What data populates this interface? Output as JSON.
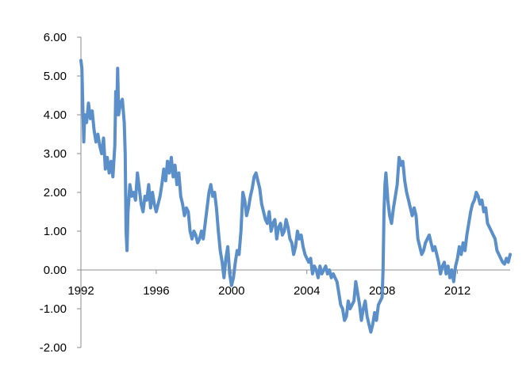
{
  "chart_data": {
    "type": "line",
    "title": "",
    "xlabel": "",
    "ylabel": "",
    "xlim": [
      1992,
      2014.8
    ],
    "ylim": [
      -2.0,
      6.0
    ],
    "grid": false,
    "legend": "none",
    "x_ticks": [
      {
        "value": 1992,
        "label": "1992"
      },
      {
        "value": 1996,
        "label": "1996"
      },
      {
        "value": 2000,
        "label": "2000"
      },
      {
        "value": 2004,
        "label": "2004"
      },
      {
        "value": 2008,
        "label": "2008"
      },
      {
        "value": 2012,
        "label": "2012"
      }
    ],
    "y_ticks": [
      {
        "value": 6,
        "label": "6.00"
      },
      {
        "value": 5,
        "label": "5.00"
      },
      {
        "value": 4,
        "label": "4.00"
      },
      {
        "value": 3,
        "label": "3.00"
      },
      {
        "value": 2,
        "label": "2.00"
      },
      {
        "value": 1,
        "label": "1.00"
      },
      {
        "value": 0,
        "label": "0.00"
      },
      {
        "value": -1,
        "label": "-1.00"
      },
      {
        "value": -2,
        "label": "-2.00"
      }
    ],
    "series": [
      {
        "color": "#5b8fc9",
        "points": [
          [
            1992.0,
            5.4
          ],
          [
            1992.05,
            5.2
          ],
          [
            1992.1,
            4.2
          ],
          [
            1992.15,
            3.3
          ],
          [
            1992.2,
            4.0
          ],
          [
            1992.3,
            3.8
          ],
          [
            1992.4,
            4.3
          ],
          [
            1992.5,
            3.9
          ],
          [
            1992.6,
            4.1
          ],
          [
            1992.7,
            3.6
          ],
          [
            1992.8,
            3.3
          ],
          [
            1992.9,
            3.5
          ],
          [
            1993.0,
            3.2
          ],
          [
            1993.1,
            3.0
          ],
          [
            1993.2,
            3.4
          ],
          [
            1993.3,
            2.6
          ],
          [
            1993.4,
            2.9
          ],
          [
            1993.5,
            2.5
          ],
          [
            1993.6,
            2.8
          ],
          [
            1993.7,
            2.4
          ],
          [
            1993.8,
            3.2
          ],
          [
            1993.85,
            4.6
          ],
          [
            1993.9,
            4.0
          ],
          [
            1993.95,
            5.2
          ],
          [
            1994.0,
            4.0
          ],
          [
            1994.1,
            4.3
          ],
          [
            1994.2,
            4.4
          ],
          [
            1994.3,
            3.8
          ],
          [
            1994.35,
            3.0
          ],
          [
            1994.4,
            1.0
          ],
          [
            1994.45,
            0.5
          ],
          [
            1994.5,
            1.5
          ],
          [
            1994.6,
            2.2
          ],
          [
            1994.7,
            1.9
          ],
          [
            1994.8,
            2.0
          ],
          [
            1994.9,
            1.8
          ],
          [
            1995.0,
            2.5
          ],
          [
            1995.1,
            2.1
          ],
          [
            1995.2,
            1.7
          ],
          [
            1995.3,
            1.5
          ],
          [
            1995.4,
            1.9
          ],
          [
            1995.5,
            1.8
          ],
          [
            1995.6,
            2.2
          ],
          [
            1995.7,
            1.6
          ],
          [
            1995.8,
            2.0
          ],
          [
            1995.9,
            1.7
          ],
          [
            1996.0,
            1.5
          ],
          [
            1996.1,
            1.7
          ],
          [
            1996.2,
            1.9
          ],
          [
            1996.3,
            2.2
          ],
          [
            1996.4,
            2.6
          ],
          [
            1996.5,
            2.3
          ],
          [
            1996.6,
            2.8
          ],
          [
            1996.7,
            2.5
          ],
          [
            1996.8,
            2.9
          ],
          [
            1996.9,
            2.4
          ],
          [
            1997.0,
            2.7
          ],
          [
            1997.1,
            2.2
          ],
          [
            1997.2,
            2.5
          ],
          [
            1997.3,
            1.9
          ],
          [
            1997.4,
            1.7
          ],
          [
            1997.5,
            1.4
          ],
          [
            1997.6,
            1.6
          ],
          [
            1997.7,
            1.5
          ],
          [
            1997.8,
            1.0
          ],
          [
            1997.9,
            0.8
          ],
          [
            1998.0,
            1.0
          ],
          [
            1998.1,
            0.9
          ],
          [
            1998.2,
            0.7
          ],
          [
            1998.3,
            0.8
          ],
          [
            1998.4,
            1.0
          ],
          [
            1998.5,
            0.8
          ],
          [
            1998.6,
            1.2
          ],
          [
            1998.7,
            1.6
          ],
          [
            1998.8,
            2.0
          ],
          [
            1998.9,
            2.2
          ],
          [
            1999.0,
            1.9
          ],
          [
            1999.1,
            2.0
          ],
          [
            1999.2,
            1.6
          ],
          [
            1999.3,
            1.0
          ],
          [
            1999.4,
            0.5
          ],
          [
            1999.5,
            0.2
          ],
          [
            1999.6,
            -0.2
          ],
          [
            1999.7,
            0.3
          ],
          [
            1999.8,
            0.6
          ],
          [
            1999.9,
            -0.1
          ],
          [
            2000.0,
            -0.4
          ],
          [
            2000.1,
            -0.2
          ],
          [
            2000.2,
            0.2
          ],
          [
            2000.3,
            0.5
          ],
          [
            2000.4,
            0.4
          ],
          [
            2000.5,
            1.0
          ],
          [
            2000.6,
            2.0
          ],
          [
            2000.7,
            1.8
          ],
          [
            2000.8,
            1.4
          ],
          [
            2000.9,
            1.6
          ],
          [
            2001.0,
            1.9
          ],
          [
            2001.1,
            2.1
          ],
          [
            2001.2,
            2.4
          ],
          [
            2001.3,
            2.5
          ],
          [
            2001.4,
            2.3
          ],
          [
            2001.5,
            2.1
          ],
          [
            2001.6,
            1.7
          ],
          [
            2001.7,
            1.5
          ],
          [
            2001.8,
            1.3
          ],
          [
            2001.9,
            1.2
          ],
          [
            2002.0,
            1.5
          ],
          [
            2002.1,
            1.0
          ],
          [
            2002.2,
            1.2
          ],
          [
            2002.3,
            1.3
          ],
          [
            2002.4,
            0.8
          ],
          [
            2002.5,
            1.1
          ],
          [
            2002.6,
            1.2
          ],
          [
            2002.7,
            0.9
          ],
          [
            2002.8,
            1.0
          ],
          [
            2002.9,
            1.3
          ],
          [
            2003.0,
            1.1
          ],
          [
            2003.1,
            0.8
          ],
          [
            2003.2,
            0.7
          ],
          [
            2003.3,
            0.4
          ],
          [
            2003.4,
            0.6
          ],
          [
            2003.5,
            1.0
          ],
          [
            2003.6,
            0.8
          ],
          [
            2003.7,
            0.9
          ],
          [
            2003.8,
            0.6
          ],
          [
            2003.9,
            0.4
          ],
          [
            2004.0,
            0.3
          ],
          [
            2004.1,
            0.2
          ],
          [
            2004.2,
            0.3
          ],
          [
            2004.3,
            -0.1
          ],
          [
            2004.4,
            0.1
          ],
          [
            2004.5,
            0.0
          ],
          [
            2004.6,
            -0.2
          ],
          [
            2004.7,
            0.1
          ],
          [
            2004.8,
            -0.1
          ],
          [
            2004.9,
            0.0
          ],
          [
            2005.0,
            0.1
          ],
          [
            2005.1,
            -0.1
          ],
          [
            2005.2,
            0.0
          ],
          [
            2005.3,
            -0.2
          ],
          [
            2005.4,
            -0.1
          ],
          [
            2005.5,
            -0.2
          ],
          [
            2005.6,
            -0.3
          ],
          [
            2005.7,
            -0.6
          ],
          [
            2005.8,
            -0.9
          ],
          [
            2005.9,
            -1.0
          ],
          [
            2006.0,
            -1.3
          ],
          [
            2006.1,
            -1.2
          ],
          [
            2006.2,
            -0.8
          ],
          [
            2006.3,
            -1.0
          ],
          [
            2006.4,
            -0.9
          ],
          [
            2006.5,
            -0.8
          ],
          [
            2006.6,
            -0.3
          ],
          [
            2006.7,
            -0.6
          ],
          [
            2006.8,
            -0.9
          ],
          [
            2006.9,
            -1.3
          ],
          [
            2007.0,
            -1.0
          ],
          [
            2007.1,
            -0.8
          ],
          [
            2007.2,
            -1.2
          ],
          [
            2007.3,
            -1.4
          ],
          [
            2007.4,
            -1.6
          ],
          [
            2007.5,
            -1.4
          ],
          [
            2007.6,
            -1.1
          ],
          [
            2007.7,
            -1.3
          ],
          [
            2007.8,
            -0.9
          ],
          [
            2007.9,
            -0.8
          ],
          [
            2008.0,
            -0.7
          ],
          [
            2008.05,
            0.0
          ],
          [
            2008.1,
            1.5
          ],
          [
            2008.15,
            2.2
          ],
          [
            2008.2,
            2.5
          ],
          [
            2008.3,
            1.8
          ],
          [
            2008.4,
            1.4
          ],
          [
            2008.5,
            1.2
          ],
          [
            2008.6,
            1.6
          ],
          [
            2008.7,
            1.9
          ],
          [
            2008.8,
            2.2
          ],
          [
            2008.9,
            2.9
          ],
          [
            2009.0,
            2.7
          ],
          [
            2009.1,
            2.8
          ],
          [
            2009.2,
            2.3
          ],
          [
            2009.3,
            2.0
          ],
          [
            2009.4,
            1.8
          ],
          [
            2009.5,
            1.6
          ],
          [
            2009.6,
            1.4
          ],
          [
            2009.7,
            1.6
          ],
          [
            2009.8,
            1.4
          ],
          [
            2009.9,
            0.8
          ],
          [
            2010.0,
            0.6
          ],
          [
            2010.1,
            0.4
          ],
          [
            2010.2,
            0.5
          ],
          [
            2010.3,
            0.7
          ],
          [
            2010.4,
            0.8
          ],
          [
            2010.5,
            0.9
          ],
          [
            2010.6,
            0.7
          ],
          [
            2010.7,
            0.5
          ],
          [
            2010.8,
            0.6
          ],
          [
            2010.9,
            0.4
          ],
          [
            2011.0,
            0.2
          ],
          [
            2011.1,
            -0.1
          ],
          [
            2011.2,
            0.1
          ],
          [
            2011.3,
            0.2
          ],
          [
            2011.4,
            -0.1
          ],
          [
            2011.5,
            0.1
          ],
          [
            2011.6,
            -0.2
          ],
          [
            2011.7,
            0.0
          ],
          [
            2011.8,
            -0.3
          ],
          [
            2011.9,
            0.1
          ],
          [
            2012.0,
            0.3
          ],
          [
            2012.1,
            0.6
          ],
          [
            2012.2,
            0.4
          ],
          [
            2012.3,
            0.7
          ],
          [
            2012.4,
            0.5
          ],
          [
            2012.5,
            0.9
          ],
          [
            2012.6,
            1.2
          ],
          [
            2012.7,
            1.5
          ],
          [
            2012.8,
            1.7
          ],
          [
            2012.9,
            1.8
          ],
          [
            2013.0,
            2.0
          ],
          [
            2013.1,
            1.9
          ],
          [
            2013.2,
            1.7
          ],
          [
            2013.3,
            1.8
          ],
          [
            2013.4,
            1.5
          ],
          [
            2013.5,
            1.6
          ],
          [
            2013.6,
            1.2
          ],
          [
            2013.7,
            1.1
          ],
          [
            2013.8,
            1.0
          ],
          [
            2013.9,
            0.9
          ],
          [
            2014.0,
            0.8
          ],
          [
            2014.1,
            0.5
          ],
          [
            2014.2,
            0.4
          ],
          [
            2014.3,
            0.3
          ],
          [
            2014.4,
            0.2
          ],
          [
            2014.5,
            0.15
          ],
          [
            2014.6,
            0.3
          ],
          [
            2014.7,
            0.2
          ],
          [
            2014.8,
            0.4
          ]
        ]
      }
    ]
  }
}
